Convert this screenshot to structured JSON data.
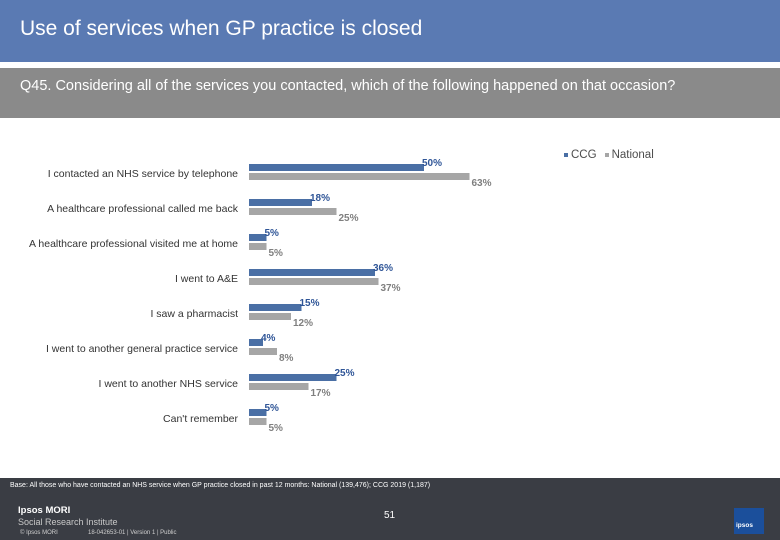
{
  "header": {
    "title": "Use of services when GP practice is closed",
    "question": "Q45. Considering all of the services you contacted, which of the following happened on that occasion?"
  },
  "legend": {
    "ccg": "CCG",
    "national": "National"
  },
  "colors": {
    "ccg": "#4a6fa5",
    "national": "#a6a6a6",
    "ccg_label": "#2f5597",
    "national_label": "#7f7f7f"
  },
  "chart_data": {
    "type": "bar",
    "orientation": "horizontal",
    "categories": [
      "I contacted an NHS service by telephone",
      "A healthcare professional called me back",
      "A healthcare professional visited me at home",
      "I went to A&E",
      "I saw a pharmacist",
      "I went to another general practice service",
      "I went to another NHS service",
      "Can't remember"
    ],
    "series": [
      {
        "name": "CCG",
        "values": [
          50,
          18,
          5,
          36,
          15,
          4,
          25,
          5
        ]
      },
      {
        "name": "National",
        "values": [
          63,
          25,
          5,
          37,
          12,
          8,
          17,
          5
        ]
      }
    ],
    "value_format": "percent",
    "xlim": [
      0,
      100
    ],
    "legend_position": "top-right"
  },
  "footer": {
    "base": "Base: All those who have contacted an NHS service when GP practice closed in past 12 months: National (139,476); CCG 2019 (1,187)",
    "logo_line1": "Ipsos MORI",
    "logo_line2": "Social Research Institute",
    "page": "51",
    "copyright": "© Ipsos MORI",
    "job_ref": "18-042653-01 | Version 1 | Public",
    "corner_logo": "ipsos"
  }
}
